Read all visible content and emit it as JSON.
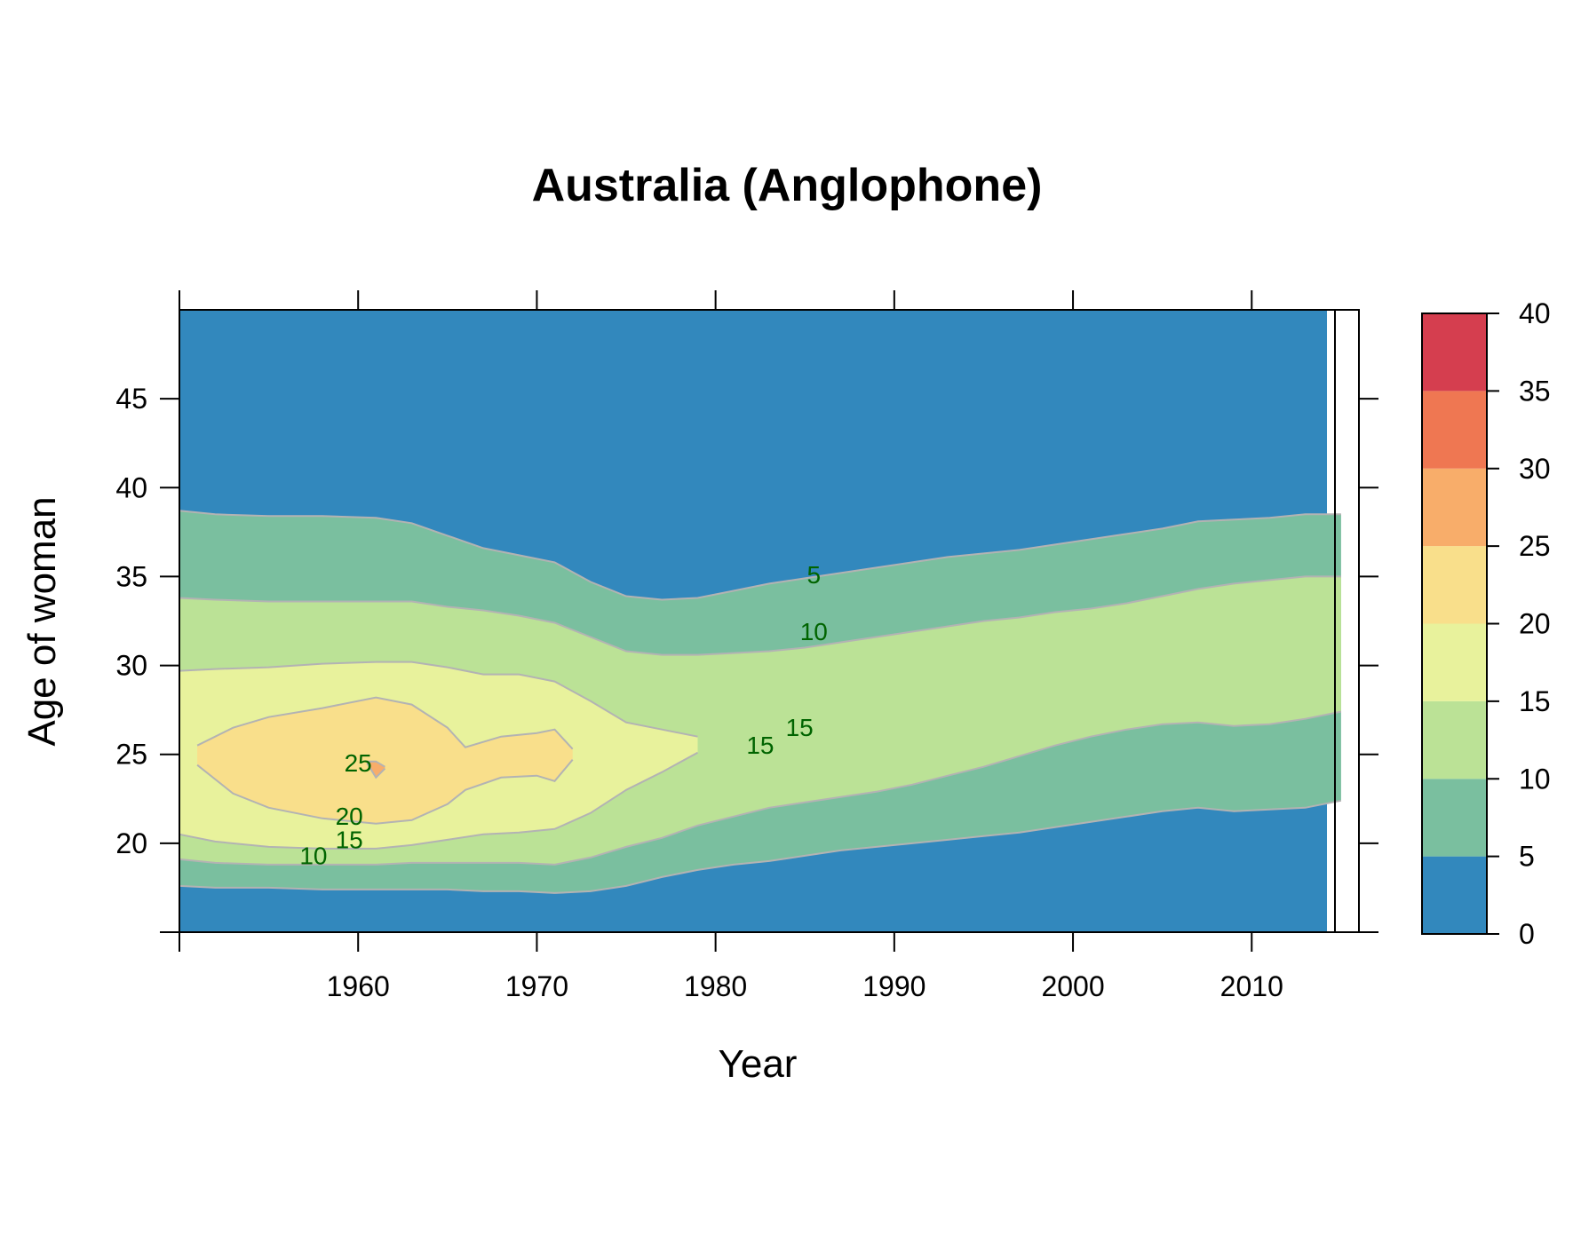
{
  "chart_data": {
    "type": "heatmap",
    "title": "Australia (Anglophone)",
    "xlabel": "Year",
    "ylabel": "Age of woman",
    "xlim": [
      1950,
      2016
    ],
    "ylim": [
      15,
      50
    ],
    "x_ticks": [
      1960,
      1970,
      1980,
      1990,
      2000,
      2010
    ],
    "y_ticks": [
      20,
      25,
      30,
      35,
      40,
      45
    ],
    "colorkey": {
      "ticks": [
        0,
        5,
        10,
        15,
        20,
        25,
        30,
        35,
        40
      ],
      "colors": [
        "#3288BD",
        "#7ABF9F",
        "#BBE296",
        "#E8F29C",
        "#F9DF8B",
        "#F8AD6A",
        "#EF7752",
        "#D53E4F"
      ]
    },
    "bands": [
      {
        "level": 5,
        "years": [
          1950,
          1952,
          1955,
          1958,
          1961,
          1963,
          1965,
          1967,
          1969,
          1971,
          1973,
          1975,
          1977,
          1979,
          1981,
          1983,
          1985,
          1987,
          1989,
          1991,
          1993,
          1995,
          1997,
          1999,
          2001,
          2003,
          2005,
          2007,
          2009,
          2011,
          2013,
          2015
        ],
        "lower": [
          17.6,
          17.5,
          17.5,
          17.4,
          17.4,
          17.4,
          17.4,
          17.3,
          17.3,
          17.2,
          17.3,
          17.6,
          18.1,
          18.5,
          18.8,
          19.0,
          19.3,
          19.6,
          19.8,
          20.0,
          20.2,
          20.4,
          20.6,
          20.9,
          21.2,
          21.5,
          21.8,
          22.0,
          21.8,
          21.9,
          22.0,
          22.4
        ],
        "upper": [
          38.7,
          38.5,
          38.4,
          38.4,
          38.3,
          38.0,
          37.3,
          36.6,
          36.2,
          35.8,
          34.7,
          33.9,
          33.7,
          33.8,
          34.2,
          34.6,
          34.9,
          35.2,
          35.5,
          35.8,
          36.1,
          36.3,
          36.5,
          36.8,
          37.1,
          37.4,
          37.7,
          38.1,
          38.2,
          38.3,
          38.5,
          38.5
        ]
      },
      {
        "level": 10,
        "years": [
          1950,
          1952,
          1955,
          1958,
          1961,
          1963,
          1965,
          1967,
          1969,
          1971,
          1973,
          1975,
          1977,
          1979,
          1981,
          1983,
          1985,
          1987,
          1989,
          1991,
          1993,
          1995,
          1997,
          1999,
          2001,
          2003,
          2005,
          2007,
          2009,
          2011,
          2013,
          2015
        ],
        "lower": [
          19.1,
          18.9,
          18.8,
          18.8,
          18.8,
          18.9,
          18.9,
          18.9,
          18.9,
          18.8,
          19.2,
          19.8,
          20.3,
          21.0,
          21.5,
          22.0,
          22.3,
          22.6,
          22.9,
          23.3,
          23.8,
          24.3,
          24.9,
          25.5,
          26.0,
          26.4,
          26.7,
          26.8,
          26.6,
          26.7,
          27.0,
          27.4
        ],
        "upper": [
          33.8,
          33.7,
          33.6,
          33.6,
          33.6,
          33.6,
          33.3,
          33.1,
          32.8,
          32.4,
          31.6,
          30.8,
          30.6,
          30.6,
          30.7,
          30.8,
          31.0,
          31.3,
          31.6,
          31.9,
          32.2,
          32.5,
          32.7,
          33.0,
          33.2,
          33.5,
          33.9,
          34.3,
          34.6,
          34.8,
          35.0,
          35.0
        ]
      },
      {
        "level": 15,
        "years": [
          1950,
          1952,
          1955,
          1958,
          1961,
          1963,
          1965,
          1967,
          1969,
          1971,
          1973,
          1975,
          1977,
          1979
        ],
        "lower": [
          20.5,
          20.1,
          19.8,
          19.7,
          19.7,
          19.9,
          20.2,
          20.5,
          20.6,
          20.8,
          21.7,
          23.0,
          24.0,
          25.1
        ],
        "upper": [
          29.7,
          29.8,
          29.9,
          30.1,
          30.2,
          30.2,
          29.9,
          29.5,
          29.5,
          29.1,
          28.0,
          26.8,
          26.4,
          26.0
        ]
      },
      {
        "level": 20,
        "years": [
          1951,
          1953,
          1955,
          1958,
          1961,
          1963,
          1965,
          1966,
          1968,
          1970,
          1971,
          1972
        ],
        "lower": [
          24.4,
          22.8,
          22.0,
          21.4,
          21.1,
          21.3,
          22.2,
          23.0,
          23.7,
          23.8,
          23.5,
          24.7
        ],
        "upper": [
          25.5,
          26.5,
          27.1,
          27.6,
          28.2,
          27.8,
          26.5,
          25.4,
          26.0,
          26.2,
          26.4,
          25.3
        ]
      },
      {
        "level": 25,
        "years": [
          1960.5,
          1961,
          1961.5
        ],
        "lower": [
          24.5,
          23.7,
          24.2
        ],
        "upper": [
          24.6,
          24.6,
          24.3
        ]
      }
    ],
    "contour_labels": [
      {
        "text": "5",
        "x": 1985.5,
        "y": 35
      },
      {
        "text": "10",
        "x": 1985.5,
        "y": 31.8
      },
      {
        "text": "15",
        "x": 1984.7,
        "y": 26.4
      },
      {
        "text": "15",
        "x": 1982.5,
        "y": 25.4
      },
      {
        "text": "25",
        "x": 1960,
        "y": 24.4
      },
      {
        "text": "20",
        "x": 1959.5,
        "y": 21.4
      },
      {
        "text": "15",
        "x": 1959.5,
        "y": 20.1
      },
      {
        "text": "10",
        "x": 1957.5,
        "y": 19.2
      }
    ]
  }
}
